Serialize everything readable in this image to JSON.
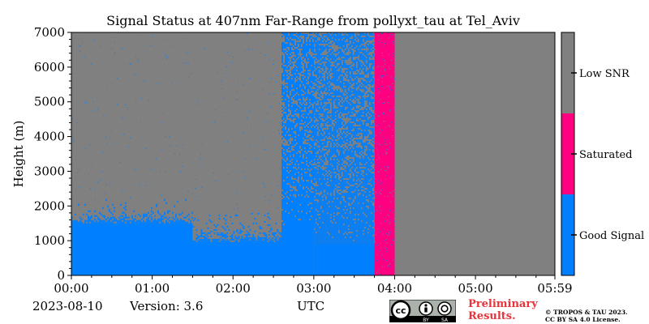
{
  "title": "Signal Status at 407nm Far-Range from pollyxt_tau at Tel_Aviv",
  "footer": {
    "date": "2023-08-10",
    "version": "Version: 3.6",
    "xunit": "UTC",
    "preliminary_line1": "Preliminary",
    "preliminary_line2": "Results.",
    "license_line1": "© TROPOS & TAU 2023.",
    "license_line2": "CC BY SA 4.0 License.",
    "cc_badge": {
      "icon": "cc-by-sa-license-badge",
      "label_by": "BY",
      "label_sa": "SA"
    }
  },
  "colors": {
    "good_signal": "#0080ff",
    "saturated": "#ff0080",
    "low_snr": "#808080"
  },
  "chart_data": {
    "type": "heatmap",
    "title": "Signal Status at 407nm Far-Range from pollyxt_tau at Tel_Aviv",
    "xlabel": "UTC",
    "ylabel": "Height (m)",
    "xlim_hours": [
      0,
      5.983
    ],
    "ylim": [
      0,
      7000
    ],
    "x_ticks": [
      {
        "value": 0,
        "label": "00:00"
      },
      {
        "value": 1,
        "label": "01:00"
      },
      {
        "value": 2,
        "label": "02:00"
      },
      {
        "value": 3,
        "label": "03:00"
      },
      {
        "value": 4,
        "label": "04:00"
      },
      {
        "value": 5,
        "label": "05:00"
      },
      {
        "value": 5.983,
        "label": "05:59"
      }
    ],
    "y_ticks": [
      0,
      1000,
      2000,
      3000,
      4000,
      5000,
      6000,
      7000
    ],
    "colorbar": [
      {
        "label": "Low SNR",
        "color": "#808080"
      },
      {
        "label": "Saturated",
        "color": "#ff0080"
      },
      {
        "label": "Good Signal",
        "color": "#0080ff"
      }
    ],
    "segments": [
      {
        "t_start": 0.0,
        "t_end": 1.5,
        "good_signal_top_m": 1500,
        "transition_top_m": 2200,
        "noise_fraction_above": 0.02
      },
      {
        "t_start": 1.5,
        "t_end": 2.6,
        "good_signal_top_m": 950,
        "transition_top_m": 1800,
        "noise_fraction_above": 0.05
      },
      {
        "t_start": 2.6,
        "t_end": 3.0,
        "good_signal_top_m": 1350,
        "transition_top_m": 7000,
        "noise_fraction_above": 0.65
      },
      {
        "t_start": 3.0,
        "t_end": 3.75,
        "good_signal_top_m": 900,
        "transition_top_m": 7000,
        "noise_fraction_above": 0.6
      },
      {
        "t_start": 3.75,
        "t_end": 4.0,
        "saturated": true
      },
      {
        "t_start": 4.0,
        "t_end": 5.983,
        "low_snr_only": true
      }
    ]
  }
}
